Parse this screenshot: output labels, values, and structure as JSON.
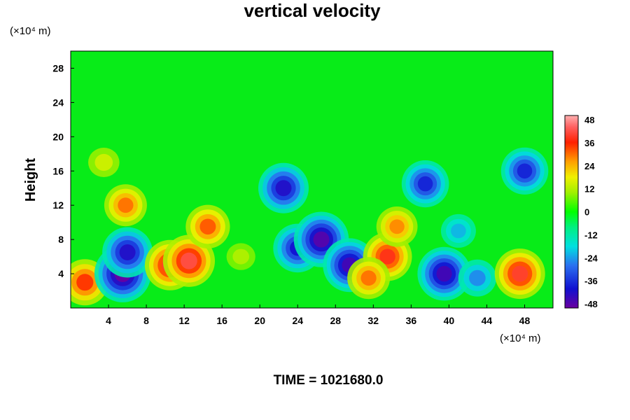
{
  "chart_data": {
    "type": "heatmap",
    "title": "vertical velocity",
    "ylabel": "Height",
    "x_unit": "(×10⁴ m)",
    "y_unit": "(×10⁴ m)",
    "x_ticks": [
      "4",
      "8",
      "12",
      "16",
      "20",
      "24",
      "28",
      "32",
      "36",
      "40",
      "44",
      "48"
    ],
    "y_ticks": [
      "4",
      "8",
      "12",
      "16",
      "20",
      "24",
      "28"
    ],
    "xlim": [
      0,
      51
    ],
    "ylim": [
      0,
      30
    ],
    "colorbar": {
      "ticks": [
        "48",
        "36",
        "24",
        "12",
        "0",
        "-12",
        "-24",
        "-36",
        "-48"
      ],
      "min": -48,
      "max": 48
    },
    "time_label": "TIME = 1021680.0",
    "features": [
      {
        "x": 1.5,
        "y": 3.0,
        "value": 35
      },
      {
        "x": 5.5,
        "y": 4.0,
        "value": -48
      },
      {
        "x": 6.0,
        "y": 6.5,
        "value": -40
      },
      {
        "x": 10.5,
        "y": 5.0,
        "value": 40
      },
      {
        "x": 12.5,
        "y": 5.5,
        "value": 42
      },
      {
        "x": 14.5,
        "y": 9.5,
        "value": 32
      },
      {
        "x": 5.8,
        "y": 12.0,
        "value": 30
      },
      {
        "x": 3.5,
        "y": 17.0,
        "value": 15
      },
      {
        "x": 22.5,
        "y": 14.0,
        "value": -40
      },
      {
        "x": 24.0,
        "y": 7.0,
        "value": -38
      },
      {
        "x": 26.5,
        "y": 8.0,
        "value": -46
      },
      {
        "x": 29.5,
        "y": 5.0,
        "value": -44
      },
      {
        "x": 33.5,
        "y": 6.0,
        "value": 38
      },
      {
        "x": 34.5,
        "y": 9.5,
        "value": 28
      },
      {
        "x": 31.5,
        "y": 3.5,
        "value": 30
      },
      {
        "x": 37.5,
        "y": 14.5,
        "value": -36
      },
      {
        "x": 39.5,
        "y": 4.0,
        "value": -44
      },
      {
        "x": 41.0,
        "y": 9.0,
        "value": -20
      },
      {
        "x": 43.0,
        "y": 3.5,
        "value": -24
      },
      {
        "x": 47.5,
        "y": 4.0,
        "value": 40
      },
      {
        "x": 48.0,
        "y": 16.0,
        "value": -36
      },
      {
        "x": 18.0,
        "y": 6.0,
        "value": 12
      }
    ]
  }
}
